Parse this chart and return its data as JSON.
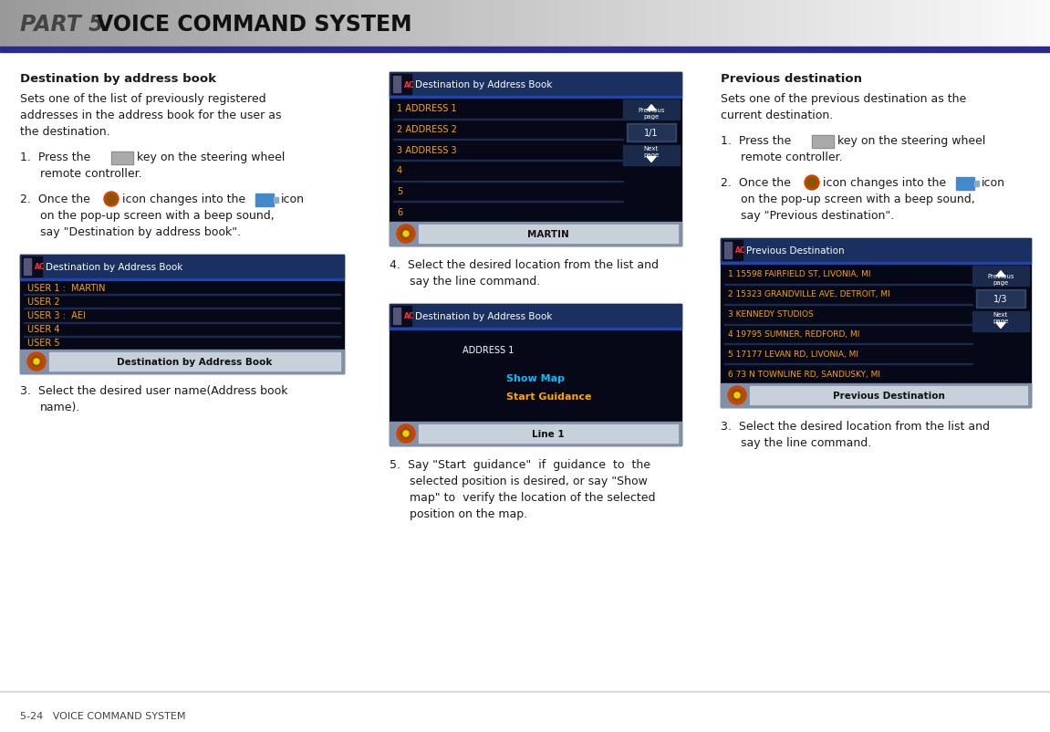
{
  "title_part": "PART 5",
  "title_main": "VOICE COMMAND SYSTEM",
  "header_line_color": "#2b2b8c",
  "footer_text": "5-24   VOICE COMMAND SYSTEM",
  "bg_color": "#ffffff",
  "section1_title": "Destination by address book",
  "section2_title": "Previous destination",
  "screen1_title": "Destination by Address Book",
  "screen1_items": [
    "1 ADDRESS 1",
    "2 ADDRESS 2",
    "3 ADDRESS 3",
    "4",
    "5",
    "6"
  ],
  "screen1_bottom": "MARTIN",
  "screen1_page": "1/1",
  "screen2_title": "Destination by Address Book",
  "screen2_address": "ADDRESS 1",
  "screen2_items_cyan": "Show Map",
  "screen2_items_orange": "Start Guidance",
  "screen2_bottom": "Line 1",
  "screen3_title": "Destination by Address Book",
  "screen3_items": [
    "USER 1 :  MARTIN",
    "USER 2",
    "USER 3 :  AEI",
    "USER 4",
    "USER 5"
  ],
  "screen3_bottom": "Destination by Address Book",
  "screen4_title": "Previous Destination",
  "screen4_items": [
    "1 15598 FAIRFIELD ST, LIVONIA, MI",
    "2 15323 GRANDVILLE AVE, DETROIT, MI",
    "3 KENNEDY STUDIOS",
    "4 19795 SUMNER, REDFORD, MI",
    "5 17177 LEVAN RD, LIVONIA, MI",
    "6 73 N TOWNLINE RD, SANDUSKY, MI"
  ],
  "screen4_bottom": "Previous Destination",
  "screen4_page": "1/3",
  "screen_bg": "#060818",
  "screen_title_bg": "#1a3060",
  "screen_item_color": "#ffa500",
  "screen_sep_color": "#1e2a4a",
  "screen_bottom_bg": "#8090a8",
  "text_color": "#1a1a1a",
  "text_size": 9.0,
  "title_size": 9.5,
  "footer_size": 8.0,
  "header_part_color": "#444444",
  "header_main_color": "#111111",
  "header_size": 17
}
